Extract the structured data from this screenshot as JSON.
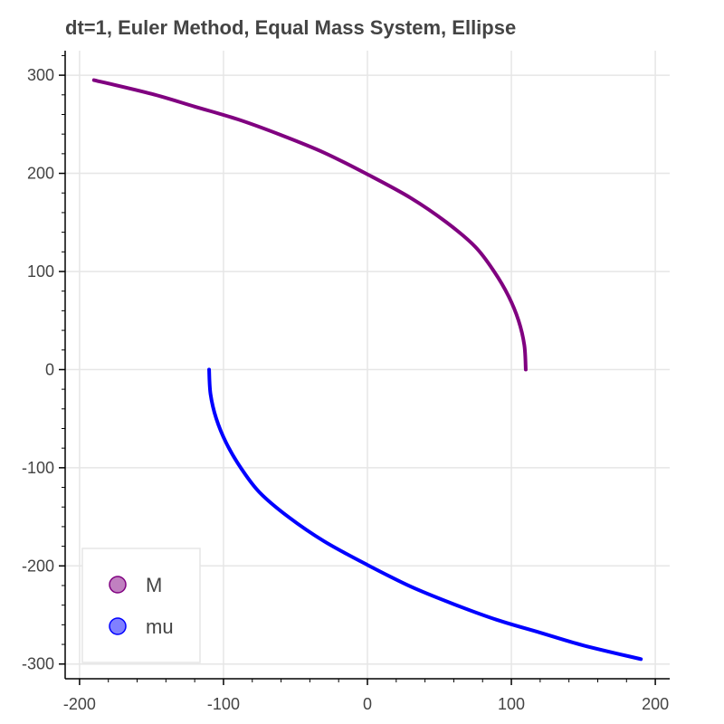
{
  "chart_data": {
    "type": "line",
    "title": "dt=1, Euler Method, Equal Mass System, Ellipse",
    "xlabel": "",
    "ylabel": "",
    "xlim": [
      -210,
      210
    ],
    "ylim": [
      -315,
      325
    ],
    "x_ticks": [
      -200,
      -100,
      0,
      100,
      200
    ],
    "x_tick_labels": [
      "-200",
      "-100",
      "0",
      "100",
      "200"
    ],
    "y_ticks": [
      -300,
      -200,
      -100,
      0,
      100,
      200,
      300
    ],
    "y_tick_labels": [
      "-300",
      "-200",
      "-100",
      "0",
      "100",
      "200",
      "300"
    ],
    "grid": true,
    "legend_position": "bottom-left",
    "series": [
      {
        "name": "M",
        "color": "#800080",
        "legend_fill": "#c080c0",
        "x": [
          110,
          109,
          105,
          98,
          88,
          75,
          55,
          30,
          0,
          -30,
          -60,
          -90,
          -120,
          -150,
          -190
        ],
        "y": [
          0,
          25,
          50,
          75,
          100,
          125,
          150,
          175,
          199,
          221,
          239,
          255,
          268,
          281,
          295
        ]
      },
      {
        "name": "mu",
        "color": "#0000ff",
        "legend_fill": "#8080ff",
        "x": [
          -110,
          -109,
          -105,
          -98,
          -88,
          -75,
          -55,
          -30,
          0,
          30,
          60,
          90,
          120,
          150,
          190
        ],
        "y": [
          0,
          -25,
          -50,
          -75,
          -100,
          -125,
          -150,
          -175,
          -199,
          -221,
          -239,
          -255,
          -268,
          -281,
          -295
        ]
      }
    ]
  }
}
